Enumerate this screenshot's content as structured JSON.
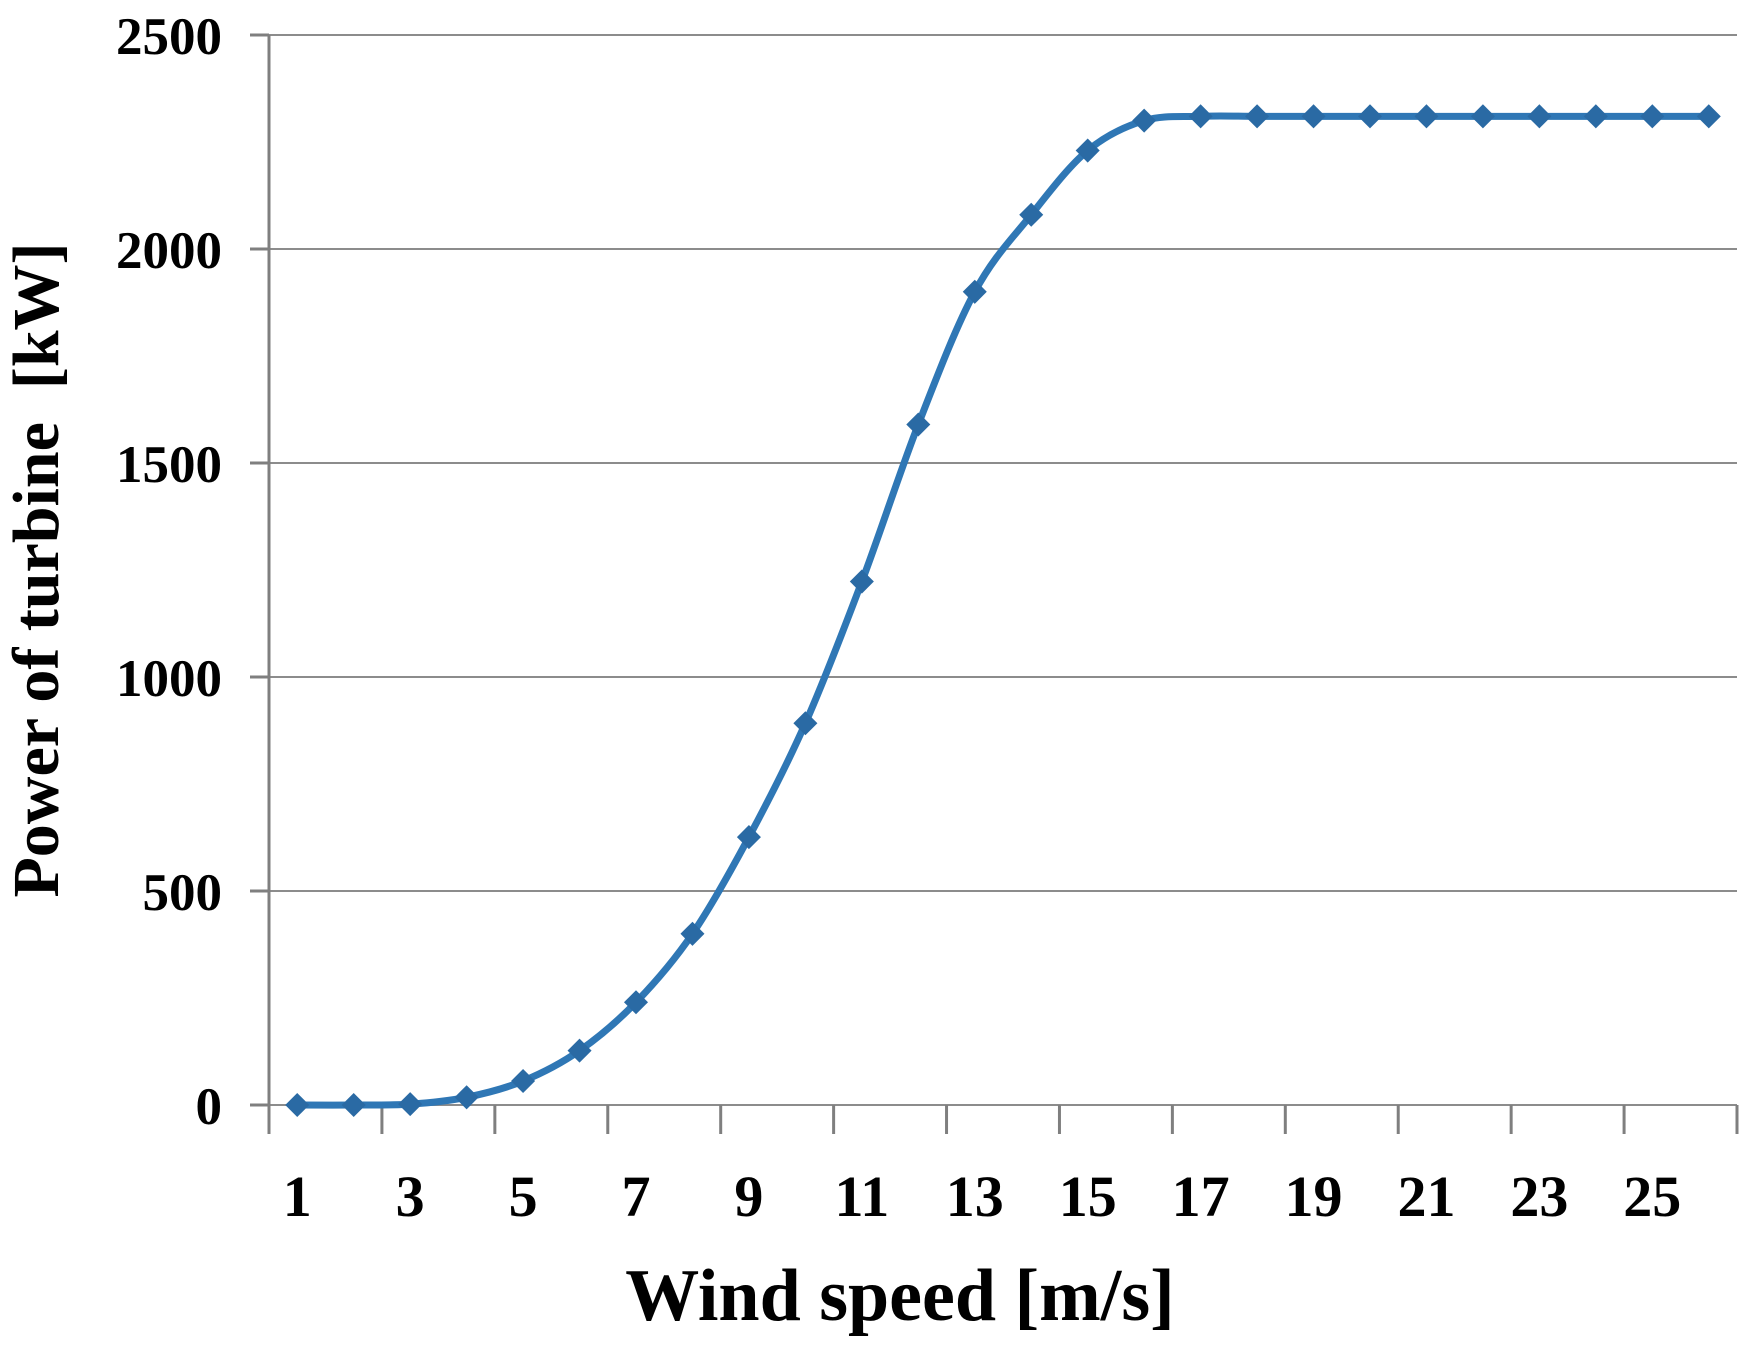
{
  "chart_data": {
    "type": "line",
    "title": "",
    "xlabel": "Wind speed [m/s]",
    "ylabel": "Power of turbine  [kW]",
    "x": [
      1,
      2,
      3,
      4,
      5,
      6,
      7,
      8,
      9,
      10,
      11,
      12,
      13,
      14,
      15,
      16,
      17,
      18,
      19,
      20,
      21,
      22,
      23,
      24,
      25,
      26
    ],
    "series": [
      {
        "name": "Power of turbine",
        "values": [
          0,
          0,
          2,
          18,
          56,
          127,
          240,
          400,
          626,
          892,
          1223,
          1590,
          1900,
          2080,
          2230,
          2300,
          2310,
          2310,
          2310,
          2310,
          2310,
          2310,
          2310,
          2310,
          2310,
          2310
        ]
      }
    ],
    "ylim": [
      0,
      2500
    ],
    "y_ticks": [
      0,
      500,
      1000,
      1500,
      2000,
      2500
    ],
    "x_tick_labels": [
      "1",
      "3",
      "5",
      "7",
      "9",
      "11",
      "13",
      "15",
      "17",
      "19",
      "21",
      "23",
      "25"
    ],
    "grid": "horizontal",
    "legend_position": "none",
    "smooth_line": true,
    "marker_shape": "diamond",
    "colors": {
      "line": "#2f77b5",
      "marker": "#2a6aa4",
      "grid": "#8c8c8c",
      "axis": "#7f7f7f",
      "text": "#000000",
      "background": "#ffffff"
    }
  }
}
